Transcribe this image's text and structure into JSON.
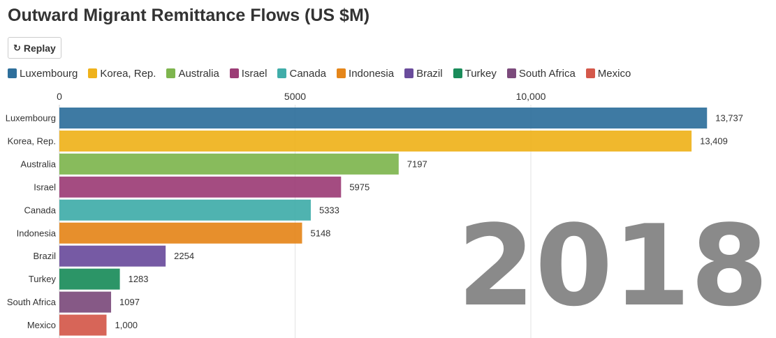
{
  "title": "Outward Migrant Remittance Flows (US $M)",
  "replay": {
    "icon": "replay-icon",
    "label": "Replay"
  },
  "year": "2018",
  "chart_data": {
    "type": "bar",
    "orientation": "horizontal",
    "title": "Outward Migrant Remittance Flows (US $M)",
    "xlabel": "",
    "ylabel": "",
    "xlim": [
      0,
      15000
    ],
    "x_ticks": [
      {
        "value": 0,
        "label": "0"
      },
      {
        "value": 5000,
        "label": "5000"
      },
      {
        "value": 10000,
        "label": "10,000"
      }
    ],
    "grid": true,
    "legend_position": "top-left",
    "categories": [
      "Luxembourg",
      "Korea, Rep.",
      "Australia",
      "Israel",
      "Canada",
      "Indonesia",
      "Brazil",
      "Turkey",
      "South Africa",
      "Mexico"
    ],
    "values": [
      13737,
      13409,
      7197,
      5975,
      5333,
      5148,
      2254,
      1283,
      1097,
      1000
    ],
    "value_labels": [
      "13,737",
      "13,409",
      "7197",
      "5975",
      "5333",
      "5148",
      "2254",
      "1283",
      "1097",
      "1,000"
    ],
    "colors": [
      "#2e6f9b",
      "#efb21b",
      "#7eb54e",
      "#9c3d76",
      "#40ada9",
      "#e5861a",
      "#6a4c9c",
      "#1a8c5a",
      "#7c4b7c",
      "#d4584a"
    ]
  }
}
